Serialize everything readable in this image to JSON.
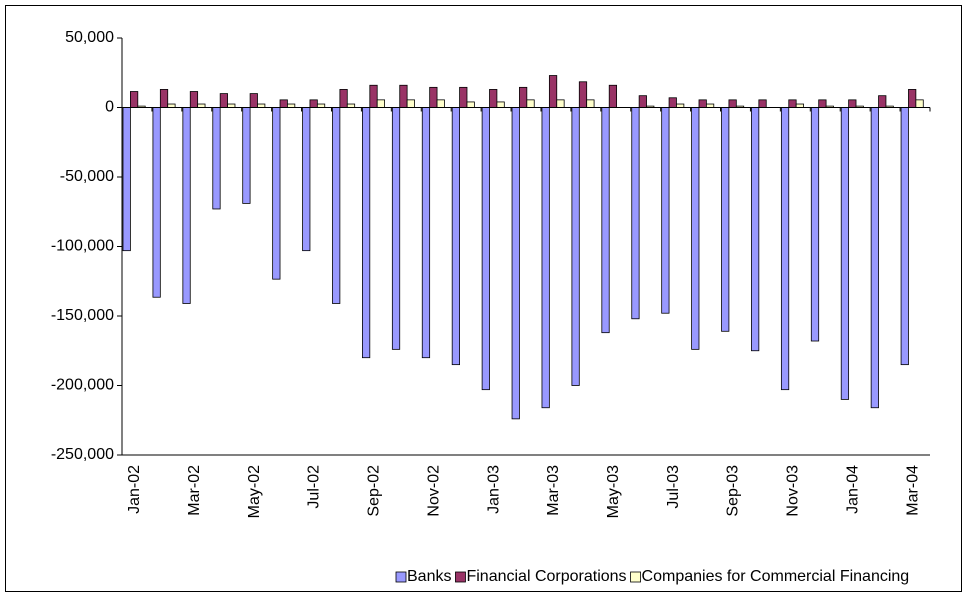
{
  "chart_data": {
    "type": "bar",
    "categories": [
      "Jan-02",
      null,
      "Mar-02",
      null,
      "May-02",
      null,
      "Jul-02",
      null,
      "Sep-02",
      null,
      "Nov-02",
      null,
      "Jan-03",
      null,
      "Mar-03",
      null,
      "May-03",
      null,
      "Jul-03",
      null,
      "Sep-03",
      null,
      "Nov-03",
      null,
      "Jan-04",
      null,
      "Mar-04"
    ],
    "series": [
      {
        "name": "Banks",
        "color": "#9999ff",
        "values": [
          -103000,
          -136500,
          -141000,
          -73000,
          -69000,
          -123500,
          -103000,
          -141000,
          -180000,
          -174000,
          -180000,
          -185000,
          -203000,
          -224000,
          -216000,
          -200000,
          -162000,
          -152000,
          -148000,
          -174000,
          -161000,
          -175000,
          -203000,
          -168000,
          -210000,
          -216000,
          -185000
        ]
      },
      {
        "name": "Financial Corporations",
        "color": "#993366",
        "values": [
          11500,
          13000,
          11500,
          10000,
          10000,
          5500,
          5500,
          13000,
          16000,
          16000,
          14500,
          14500,
          13000,
          14500,
          23000,
          18500,
          16000,
          8500,
          7000,
          5500,
          5500,
          5500,
          5500,
          5500,
          5500,
          8500,
          13000
        ]
      },
      {
        "name": "Companies for Commercial Financing",
        "color": "#ffffcc",
        "values": [
          1000,
          2500,
          2500,
          2500,
          2500,
          2500,
          2500,
          2500,
          5500,
          5500,
          5500,
          4000,
          4000,
          5500,
          5500,
          5500,
          0,
          1000,
          2500,
          2500,
          1000,
          0,
          2500,
          1000,
          1000,
          1000,
          5500
        ]
      }
    ],
    "ylim": [
      -250000,
      50000
    ],
    "yticks": [
      {
        "value": -250000,
        "label": "-250,000"
      },
      {
        "value": -200000,
        "label": "-200,000"
      },
      {
        "value": -150000,
        "label": "-150,000"
      },
      {
        "value": -100000,
        "label": "-100,000"
      },
      {
        "value": -50000,
        "label": "-50,000"
      },
      0,
      {
        "value": 50000,
        "label": "50,000"
      }
    ],
    "legend": "bottom"
  }
}
